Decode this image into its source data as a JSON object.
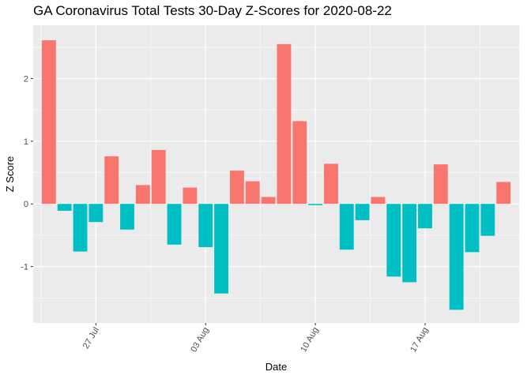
{
  "chart_data": {
    "type": "bar",
    "title": "GA Coronavirus Total Tests 30-Day Z-Scores for 2020-08-22",
    "xlabel": "Date",
    "ylabel": "Z Score",
    "x_dates": [
      "2020-07-24",
      "2020-07-25",
      "2020-07-26",
      "2020-07-27",
      "2020-07-28",
      "2020-07-29",
      "2020-07-30",
      "2020-07-31",
      "2020-08-01",
      "2020-08-02",
      "2020-08-03",
      "2020-08-04",
      "2020-08-05",
      "2020-08-06",
      "2020-08-07",
      "2020-08-08",
      "2020-08-09",
      "2020-08-10",
      "2020-08-11",
      "2020-08-12",
      "2020-08-13",
      "2020-08-14",
      "2020-08-15",
      "2020-08-16",
      "2020-08-17",
      "2020-08-18",
      "2020-08-19",
      "2020-08-20",
      "2020-08-21",
      "2020-08-22"
    ],
    "values": [
      2.61,
      -0.11,
      -0.76,
      -0.29,
      0.76,
      -0.41,
      0.3,
      0.86,
      -0.65,
      0.26,
      -0.69,
      -1.43,
      0.53,
      0.36,
      0.11,
      2.55,
      1.32,
      -0.02,
      0.64,
      -0.73,
      -0.26,
      0.11,
      -1.16,
      -1.25,
      -0.39,
      0.63,
      -1.69,
      -0.77,
      -0.51,
      0.35
    ],
    "positive_color": "#F8766D",
    "negative_color": "#00BFC4",
    "xticks": [
      {
        "date": "2020-07-27",
        "label": "27 Jul"
      },
      {
        "date": "2020-08-03",
        "label": "03 Aug"
      },
      {
        "date": "2020-08-10",
        "label": "10 Aug"
      },
      {
        "date": "2020-08-17",
        "label": "17 Aug"
      }
    ],
    "yticks": [
      -1,
      0,
      1,
      2
    ],
    "ylim": [
      -1.9,
      2.85
    ],
    "xlim": [
      "2020-07-23",
      "2020-08-23"
    ],
    "grid": true,
    "panel_background": "#EBEBEB",
    "legend": "none"
  }
}
